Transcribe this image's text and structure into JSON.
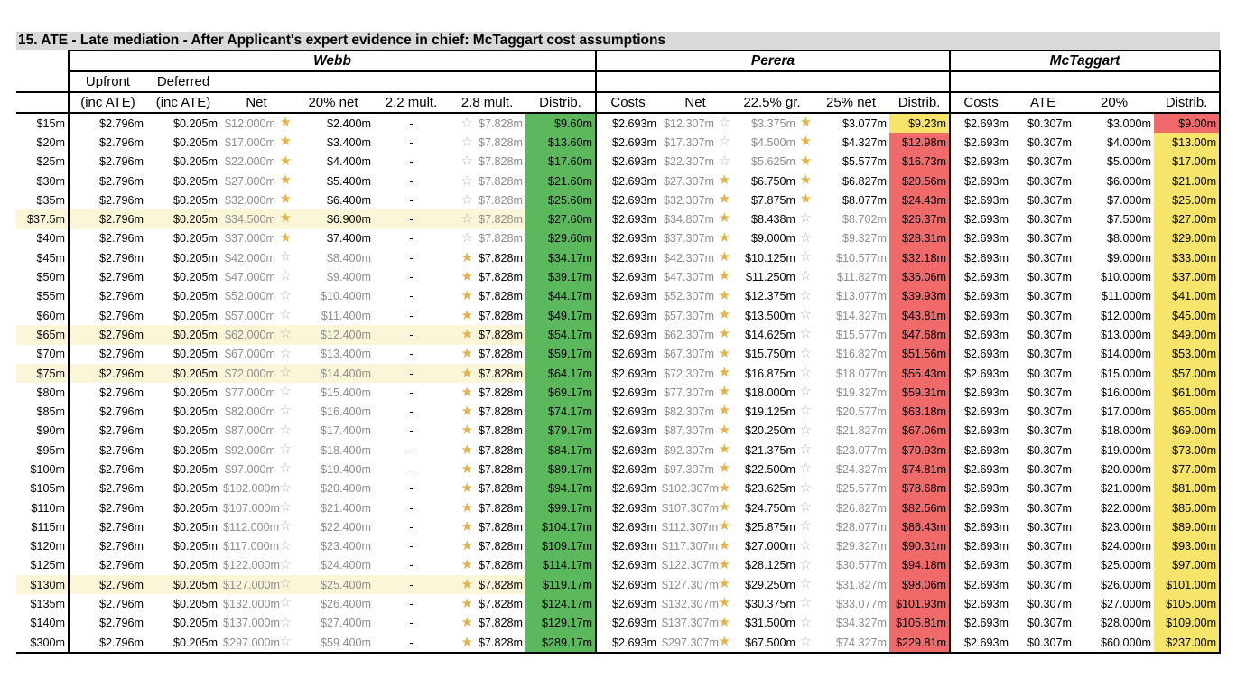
{
  "title": "15.  ATE - Late mediation - After Applicant's expert evidence in chief: McTaggart cost assumptions",
  "groups": {
    "webb": "Webb",
    "perera": "Perera",
    "mctaggart": "McTaggart"
  },
  "headers": {
    "upfront_1": "Upfront",
    "upfront_2": "(inc ATE)",
    "deferred_1": "Deferred",
    "deferred_2": "(inc ATE)",
    "w_net": "Net",
    "w_20net": "20% net",
    "w_22": "2.2 mult.",
    "w_28": "2.8 mult.",
    "w_distrib": "Distrib.",
    "p_costs": "Costs",
    "p_net": "Net",
    "p_225": "22.5% gr.",
    "p_25net": "25% net",
    "p_distrib": "Distrib.",
    "m_costs": "Costs",
    "m_ate": "ATE",
    "m_20": "20%",
    "m_distrib": "Distrib."
  },
  "colors": {
    "green": "#5cb85c",
    "red": "#f06a6a",
    "yellow": "#f7e46b",
    "highlight": "#fcf6d9",
    "star_on": "#e2b24c",
    "star_off": "#b8b8b8"
  },
  "icons": {
    "selected": "star-filled-icon",
    "unselected": "star-outline-icon"
  },
  "rows": [
    {
      "label": "$15m",
      "upfront": "$2.796m",
      "deferred": "$0.205m",
      "w_net": "$12.000m",
      "w_net_star": true,
      "w_20": "$2.400m",
      "w_22": "-",
      "w_28_star": false,
      "w_28": "$7.828m",
      "w_distrib": "$9.60m",
      "p_costs": "$2.693m",
      "p_net": "$12.307m",
      "p_net_star": false,
      "p_225": "$3.375m",
      "p_225_star": true,
      "p_25": "$3.077m",
      "p_distrib": "$9.23m",
      "p_color": "yellow",
      "m_costs": "$2.693m",
      "m_ate": "$0.307m",
      "m_20": "$3.000m",
      "m_distrib": "$9.00m",
      "m_color": "red",
      "hl": false
    },
    {
      "label": "$20m",
      "upfront": "$2.796m",
      "deferred": "$0.205m",
      "w_net": "$17.000m",
      "w_net_star": true,
      "w_20": "$3.400m",
      "w_22": "-",
      "w_28_star": false,
      "w_28": "$7.828m",
      "w_distrib": "$13.60m",
      "p_costs": "$2.693m",
      "p_net": "$17.307m",
      "p_net_star": false,
      "p_225": "$4.500m",
      "p_225_star": true,
      "p_25": "$4.327m",
      "p_distrib": "$12.98m",
      "p_color": "red",
      "m_costs": "$2.693m",
      "m_ate": "$0.307m",
      "m_20": "$4.000m",
      "m_distrib": "$13.00m",
      "m_color": "yellow",
      "hl": false
    },
    {
      "label": "$25m",
      "upfront": "$2.796m",
      "deferred": "$0.205m",
      "w_net": "$22.000m",
      "w_net_star": true,
      "w_20": "$4.400m",
      "w_22": "-",
      "w_28_star": false,
      "w_28": "$7.828m",
      "w_distrib": "$17.60m",
      "p_costs": "$2.693m",
      "p_net": "$22.307m",
      "p_net_star": false,
      "p_225": "$5.625m",
      "p_225_star": true,
      "p_25": "$5.577m",
      "p_distrib": "$16.73m",
      "p_color": "red",
      "m_costs": "$2.693m",
      "m_ate": "$0.307m",
      "m_20": "$5.000m",
      "m_distrib": "$17.00m",
      "m_color": "yellow",
      "hl": false
    },
    {
      "label": "$30m",
      "upfront": "$2.796m",
      "deferred": "$0.205m",
      "w_net": "$27.000m",
      "w_net_star": true,
      "w_20": "$5.400m",
      "w_22": "-",
      "w_28_star": false,
      "w_28": "$7.828m",
      "w_distrib": "$21.60m",
      "p_costs": "$2.693m",
      "p_net": "$27.307m",
      "p_net_star": true,
      "p_225": "$6.750m",
      "p_225_star": true,
      "p_25": "$6.827m",
      "p_distrib": "$20.56m",
      "p_color": "red",
      "m_costs": "$2.693m",
      "m_ate": "$0.307m",
      "m_20": "$6.000m",
      "m_distrib": "$21.00m",
      "m_color": "yellow",
      "hl": false
    },
    {
      "label": "$35m",
      "upfront": "$2.796m",
      "deferred": "$0.205m",
      "w_net": "$32.000m",
      "w_net_star": true,
      "w_20": "$6.400m",
      "w_22": "-",
      "w_28_star": false,
      "w_28": "$7.828m",
      "w_distrib": "$25.60m",
      "p_costs": "$2.693m",
      "p_net": "$32.307m",
      "p_net_star": true,
      "p_225": "$7.875m",
      "p_225_star": true,
      "p_25": "$8.077m",
      "p_distrib": "$24.43m",
      "p_color": "red",
      "m_costs": "$2.693m",
      "m_ate": "$0.307m",
      "m_20": "$7.000m",
      "m_distrib": "$25.00m",
      "m_color": "yellow",
      "hl": false
    },
    {
      "label": "$37.5m",
      "upfront": "$2.796m",
      "deferred": "$0.205m",
      "w_net": "$34.500m",
      "w_net_star": true,
      "w_20": "$6.900m",
      "w_22": "-",
      "w_28_star": false,
      "w_28": "$7.828m",
      "w_distrib": "$27.60m",
      "p_costs": "$2.693m",
      "p_net": "$34.807m",
      "p_net_star": true,
      "p_225": "$8.438m",
      "p_225_star": false,
      "p_25": "$8.702m",
      "p_distrib": "$26.37m",
      "p_color": "red",
      "m_costs": "$2.693m",
      "m_ate": "$0.307m",
      "m_20": "$7.500m",
      "m_distrib": "$27.00m",
      "m_color": "yellow",
      "hl": true
    },
    {
      "label": "$40m",
      "upfront": "$2.796m",
      "deferred": "$0.205m",
      "w_net": "$37.000m",
      "w_net_star": true,
      "w_20": "$7.400m",
      "w_22": "-",
      "w_28_star": false,
      "w_28": "$7.828m",
      "w_distrib": "$29.60m",
      "p_costs": "$2.693m",
      "p_net": "$37.307m",
      "p_net_star": true,
      "p_225": "$9.000m",
      "p_225_star": false,
      "p_25": "$9.327m",
      "p_distrib": "$28.31m",
      "p_color": "red",
      "m_costs": "$2.693m",
      "m_ate": "$0.307m",
      "m_20": "$8.000m",
      "m_distrib": "$29.00m",
      "m_color": "yellow",
      "hl": false
    },
    {
      "label": "$45m",
      "upfront": "$2.796m",
      "deferred": "$0.205m",
      "w_net": "$42.000m",
      "w_net_star": false,
      "w_20": "$8.400m",
      "w_22": "-",
      "w_28_star": true,
      "w_28": "$7.828m",
      "w_distrib": "$34.17m",
      "p_costs": "$2.693m",
      "p_net": "$42.307m",
      "p_net_star": true,
      "p_225": "$10.125m",
      "p_225_star": false,
      "p_25": "$10.577m",
      "p_distrib": "$32.18m",
      "p_color": "red",
      "m_costs": "$2.693m",
      "m_ate": "$0.307m",
      "m_20": "$9.000m",
      "m_distrib": "$33.00m",
      "m_color": "yellow",
      "hl": false
    },
    {
      "label": "$50m",
      "upfront": "$2.796m",
      "deferred": "$0.205m",
      "w_net": "$47.000m",
      "w_net_star": false,
      "w_20": "$9.400m",
      "w_22": "-",
      "w_28_star": true,
      "w_28": "$7.828m",
      "w_distrib": "$39.17m",
      "p_costs": "$2.693m",
      "p_net": "$47.307m",
      "p_net_star": true,
      "p_225": "$11.250m",
      "p_225_star": false,
      "p_25": "$11.827m",
      "p_distrib": "$36.06m",
      "p_color": "red",
      "m_costs": "$2.693m",
      "m_ate": "$0.307m",
      "m_20": "$10.000m",
      "m_distrib": "$37.00m",
      "m_color": "yellow",
      "hl": false
    },
    {
      "label": "$55m",
      "upfront": "$2.796m",
      "deferred": "$0.205m",
      "w_net": "$52.000m",
      "w_net_star": false,
      "w_20": "$10.400m",
      "w_22": "-",
      "w_28_star": true,
      "w_28": "$7.828m",
      "w_distrib": "$44.17m",
      "p_costs": "$2.693m",
      "p_net": "$52.307m",
      "p_net_star": true,
      "p_225": "$12.375m",
      "p_225_star": false,
      "p_25": "$13.077m",
      "p_distrib": "$39.93m",
      "p_color": "red",
      "m_costs": "$2.693m",
      "m_ate": "$0.307m",
      "m_20": "$11.000m",
      "m_distrib": "$41.00m",
      "m_color": "yellow",
      "hl": false
    },
    {
      "label": "$60m",
      "upfront": "$2.796m",
      "deferred": "$0.205m",
      "w_net": "$57.000m",
      "w_net_star": false,
      "w_20": "$11.400m",
      "w_22": "-",
      "w_28_star": true,
      "w_28": "$7.828m",
      "w_distrib": "$49.17m",
      "p_costs": "$2.693m",
      "p_net": "$57.307m",
      "p_net_star": true,
      "p_225": "$13.500m",
      "p_225_star": false,
      "p_25": "$14.327m",
      "p_distrib": "$43.81m",
      "p_color": "red",
      "m_costs": "$2.693m",
      "m_ate": "$0.307m",
      "m_20": "$12.000m",
      "m_distrib": "$45.00m",
      "m_color": "yellow",
      "hl": false
    },
    {
      "label": "$65m",
      "upfront": "$2.796m",
      "deferred": "$0.205m",
      "w_net": "$62.000m",
      "w_net_star": false,
      "w_20": "$12.400m",
      "w_22": "-",
      "w_28_star": true,
      "w_28": "$7.828m",
      "w_distrib": "$54.17m",
      "p_costs": "$2.693m",
      "p_net": "$62.307m",
      "p_net_star": true,
      "p_225": "$14.625m",
      "p_225_star": false,
      "p_25": "$15.577m",
      "p_distrib": "$47.68m",
      "p_color": "red",
      "m_costs": "$2.693m",
      "m_ate": "$0.307m",
      "m_20": "$13.000m",
      "m_distrib": "$49.00m",
      "m_color": "yellow",
      "hl": true
    },
    {
      "label": "$70m",
      "upfront": "$2.796m",
      "deferred": "$0.205m",
      "w_net": "$67.000m",
      "w_net_star": false,
      "w_20": "$13.400m",
      "w_22": "-",
      "w_28_star": true,
      "w_28": "$7.828m",
      "w_distrib": "$59.17m",
      "p_costs": "$2.693m",
      "p_net": "$67.307m",
      "p_net_star": true,
      "p_225": "$15.750m",
      "p_225_star": false,
      "p_25": "$16.827m",
      "p_distrib": "$51.56m",
      "p_color": "red",
      "m_costs": "$2.693m",
      "m_ate": "$0.307m",
      "m_20": "$14.000m",
      "m_distrib": "$53.00m",
      "m_color": "yellow",
      "hl": false
    },
    {
      "label": "$75m",
      "upfront": "$2.796m",
      "deferred": "$0.205m",
      "w_net": "$72.000m",
      "w_net_star": false,
      "w_20": "$14.400m",
      "w_22": "-",
      "w_28_star": true,
      "w_28": "$7.828m",
      "w_distrib": "$64.17m",
      "p_costs": "$2.693m",
      "p_net": "$72.307m",
      "p_net_star": true,
      "p_225": "$16.875m",
      "p_225_star": false,
      "p_25": "$18.077m",
      "p_distrib": "$55.43m",
      "p_color": "red",
      "m_costs": "$2.693m",
      "m_ate": "$0.307m",
      "m_20": "$15.000m",
      "m_distrib": "$57.00m",
      "m_color": "yellow",
      "hl": true
    },
    {
      "label": "$80m",
      "upfront": "$2.796m",
      "deferred": "$0.205m",
      "w_net": "$77.000m",
      "w_net_star": false,
      "w_20": "$15.400m",
      "w_22": "-",
      "w_28_star": true,
      "w_28": "$7.828m",
      "w_distrib": "$69.17m",
      "p_costs": "$2.693m",
      "p_net": "$77.307m",
      "p_net_star": true,
      "p_225": "$18.000m",
      "p_225_star": false,
      "p_25": "$19.327m",
      "p_distrib": "$59.31m",
      "p_color": "red",
      "m_costs": "$2.693m",
      "m_ate": "$0.307m",
      "m_20": "$16.000m",
      "m_distrib": "$61.00m",
      "m_color": "yellow",
      "hl": false
    },
    {
      "label": "$85m",
      "upfront": "$2.796m",
      "deferred": "$0.205m",
      "w_net": "$82.000m",
      "w_net_star": false,
      "w_20": "$16.400m",
      "w_22": "-",
      "w_28_star": true,
      "w_28": "$7.828m",
      "w_distrib": "$74.17m",
      "p_costs": "$2.693m",
      "p_net": "$82.307m",
      "p_net_star": true,
      "p_225": "$19.125m",
      "p_225_star": false,
      "p_25": "$20.577m",
      "p_distrib": "$63.18m",
      "p_color": "red",
      "m_costs": "$2.693m",
      "m_ate": "$0.307m",
      "m_20": "$17.000m",
      "m_distrib": "$65.00m",
      "m_color": "yellow",
      "hl": false
    },
    {
      "label": "$90m",
      "upfront": "$2.796m",
      "deferred": "$0.205m",
      "w_net": "$87.000m",
      "w_net_star": false,
      "w_20": "$17.400m",
      "w_22": "-",
      "w_28_star": true,
      "w_28": "$7.828m",
      "w_distrib": "$79.17m",
      "p_costs": "$2.693m",
      "p_net": "$87.307m",
      "p_net_star": true,
      "p_225": "$20.250m",
      "p_225_star": false,
      "p_25": "$21.827m",
      "p_distrib": "$67.06m",
      "p_color": "red",
      "m_costs": "$2.693m",
      "m_ate": "$0.307m",
      "m_20": "$18.000m",
      "m_distrib": "$69.00m",
      "m_color": "yellow",
      "hl": false
    },
    {
      "label": "$95m",
      "upfront": "$2.796m",
      "deferred": "$0.205m",
      "w_net": "$92.000m",
      "w_net_star": false,
      "w_20": "$18.400m",
      "w_22": "-",
      "w_28_star": true,
      "w_28": "$7.828m",
      "w_distrib": "$84.17m",
      "p_costs": "$2.693m",
      "p_net": "$92.307m",
      "p_net_star": true,
      "p_225": "$21.375m",
      "p_225_star": false,
      "p_25": "$23.077m",
      "p_distrib": "$70.93m",
      "p_color": "red",
      "m_costs": "$2.693m",
      "m_ate": "$0.307m",
      "m_20": "$19.000m",
      "m_distrib": "$73.00m",
      "m_color": "yellow",
      "hl": false
    },
    {
      "label": "$100m",
      "upfront": "$2.796m",
      "deferred": "$0.205m",
      "w_net": "$97.000m",
      "w_net_star": false,
      "w_20": "$19.400m",
      "w_22": "-",
      "w_28_star": true,
      "w_28": "$7.828m",
      "w_distrib": "$89.17m",
      "p_costs": "$2.693m",
      "p_net": "$97.307m",
      "p_net_star": true,
      "p_225": "$22.500m",
      "p_225_star": false,
      "p_25": "$24.327m",
      "p_distrib": "$74.81m",
      "p_color": "red",
      "m_costs": "$2.693m",
      "m_ate": "$0.307m",
      "m_20": "$20.000m",
      "m_distrib": "$77.00m",
      "m_color": "yellow",
      "hl": false
    },
    {
      "label": "$105m",
      "upfront": "$2.796m",
      "deferred": "$0.205m",
      "w_net": "$102.000m",
      "w_net_star": false,
      "w_20": "$20.400m",
      "w_22": "-",
      "w_28_star": true,
      "w_28": "$7.828m",
      "w_distrib": "$94.17m",
      "p_costs": "$2.693m",
      "p_net": "$102.307m",
      "p_net_star": true,
      "p_225": "$23.625m",
      "p_225_star": false,
      "p_25": "$25.577m",
      "p_distrib": "$78.68m",
      "p_color": "red",
      "m_costs": "$2.693m",
      "m_ate": "$0.307m",
      "m_20": "$21.000m",
      "m_distrib": "$81.00m",
      "m_color": "yellow",
      "hl": false
    },
    {
      "label": "$110m",
      "upfront": "$2.796m",
      "deferred": "$0.205m",
      "w_net": "$107.000m",
      "w_net_star": false,
      "w_20": "$21.400m",
      "w_22": "-",
      "w_28_star": true,
      "w_28": "$7.828m",
      "w_distrib": "$99.17m",
      "p_costs": "$2.693m",
      "p_net": "$107.307m",
      "p_net_star": true,
      "p_225": "$24.750m",
      "p_225_star": false,
      "p_25": "$26.827m",
      "p_distrib": "$82.56m",
      "p_color": "red",
      "m_costs": "$2.693m",
      "m_ate": "$0.307m",
      "m_20": "$22.000m",
      "m_distrib": "$85.00m",
      "m_color": "yellow",
      "hl": false
    },
    {
      "label": "$115m",
      "upfront": "$2.796m",
      "deferred": "$0.205m",
      "w_net": "$112.000m",
      "w_net_star": false,
      "w_20": "$22.400m",
      "w_22": "-",
      "w_28_star": true,
      "w_28": "$7.828m",
      "w_distrib": "$104.17m",
      "p_costs": "$2.693m",
      "p_net": "$112.307m",
      "p_net_star": true,
      "p_225": "$25.875m",
      "p_225_star": false,
      "p_25": "$28.077m",
      "p_distrib": "$86.43m",
      "p_color": "red",
      "m_costs": "$2.693m",
      "m_ate": "$0.307m",
      "m_20": "$23.000m",
      "m_distrib": "$89.00m",
      "m_color": "yellow",
      "hl": false
    },
    {
      "label": "$120m",
      "upfront": "$2.796m",
      "deferred": "$0.205m",
      "w_net": "$117.000m",
      "w_net_star": false,
      "w_20": "$23.400m",
      "w_22": "-",
      "w_28_star": true,
      "w_28": "$7.828m",
      "w_distrib": "$109.17m",
      "p_costs": "$2.693m",
      "p_net": "$117.307m",
      "p_net_star": true,
      "p_225": "$27.000m",
      "p_225_star": false,
      "p_25": "$29.327m",
      "p_distrib": "$90.31m",
      "p_color": "red",
      "m_costs": "$2.693m",
      "m_ate": "$0.307m",
      "m_20": "$24.000m",
      "m_distrib": "$93.00m",
      "m_color": "yellow",
      "hl": false
    },
    {
      "label": "$125m",
      "upfront": "$2.796m",
      "deferred": "$0.205m",
      "w_net": "$122.000m",
      "w_net_star": false,
      "w_20": "$24.400m",
      "w_22": "-",
      "w_28_star": true,
      "w_28": "$7.828m",
      "w_distrib": "$114.17m",
      "p_costs": "$2.693m",
      "p_net": "$122.307m",
      "p_net_star": true,
      "p_225": "$28.125m",
      "p_225_star": false,
      "p_25": "$30.577m",
      "p_distrib": "$94.18m",
      "p_color": "red",
      "m_costs": "$2.693m",
      "m_ate": "$0.307m",
      "m_20": "$25.000m",
      "m_distrib": "$97.00m",
      "m_color": "yellow",
      "hl": false
    },
    {
      "label": "$130m",
      "upfront": "$2.796m",
      "deferred": "$0.205m",
      "w_net": "$127.000m",
      "w_net_star": false,
      "w_20": "$25.400m",
      "w_22": "-",
      "w_28_star": true,
      "w_28": "$7.828m",
      "w_distrib": "$119.17m",
      "p_costs": "$2.693m",
      "p_net": "$127.307m",
      "p_net_star": true,
      "p_225": "$29.250m",
      "p_225_star": false,
      "p_25": "$31.827m",
      "p_distrib": "$98.06m",
      "p_color": "red",
      "m_costs": "$2.693m",
      "m_ate": "$0.307m",
      "m_20": "$26.000m",
      "m_distrib": "$101.00m",
      "m_color": "yellow",
      "hl": true
    },
    {
      "label": "$135m",
      "upfront": "$2.796m",
      "deferred": "$0.205m",
      "w_net": "$132.000m",
      "w_net_star": false,
      "w_20": "$26.400m",
      "w_22": "-",
      "w_28_star": true,
      "w_28": "$7.828m",
      "w_distrib": "$124.17m",
      "p_costs": "$2.693m",
      "p_net": "$132.307m",
      "p_net_star": true,
      "p_225": "$30.375m",
      "p_225_star": false,
      "p_25": "$33.077m",
      "p_distrib": "$101.93m",
      "p_color": "red",
      "m_costs": "$2.693m",
      "m_ate": "$0.307m",
      "m_20": "$27.000m",
      "m_distrib": "$105.00m",
      "m_color": "yellow",
      "hl": false
    },
    {
      "label": "$140m",
      "upfront": "$2.796m",
      "deferred": "$0.205m",
      "w_net": "$137.000m",
      "w_net_star": false,
      "w_20": "$27.400m",
      "w_22": "-",
      "w_28_star": true,
      "w_28": "$7.828m",
      "w_distrib": "$129.17m",
      "p_costs": "$2.693m",
      "p_net": "$137.307m",
      "p_net_star": true,
      "p_225": "$31.500m",
      "p_225_star": false,
      "p_25": "$34.327m",
      "p_distrib": "$105.81m",
      "p_color": "red",
      "m_costs": "$2.693m",
      "m_ate": "$0.307m",
      "m_20": "$28.000m",
      "m_distrib": "$109.00m",
      "m_color": "yellow",
      "hl": false
    },
    {
      "label": "$300m",
      "upfront": "$2.796m",
      "deferred": "$0.205m",
      "w_net": "$297.000m",
      "w_net_star": false,
      "w_20": "$59.400m",
      "w_22": "-",
      "w_28_star": true,
      "w_28": "$7.828m",
      "w_distrib": "$289.17m",
      "p_costs": "$2.693m",
      "p_net": "$297.307m",
      "p_net_star": true,
      "p_225": "$67.500m",
      "p_225_star": false,
      "p_25": "$74.327m",
      "p_distrib": "$229.81m",
      "p_color": "red",
      "m_costs": "$2.693m",
      "m_ate": "$0.307m",
      "m_20": "$60.000m",
      "m_distrib": "$237.00m",
      "m_color": "yellow",
      "hl": false
    }
  ]
}
